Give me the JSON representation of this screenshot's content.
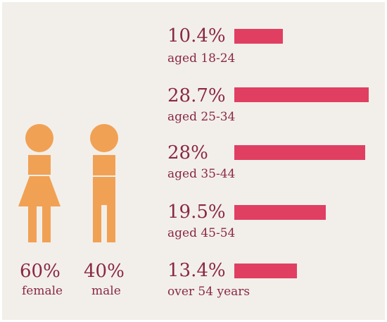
{
  "colors": {
    "background": "#f2efea",
    "figure": "#f1a154",
    "bar": "#e03f62",
    "text": "#8a2846"
  },
  "gender": [
    {
      "icon": "female-figure-icon",
      "percent": "60%",
      "label": "female"
    },
    {
      "icon": "male-figure-icon",
      "percent": "40%",
      "label": "male"
    }
  ],
  "chart_data": {
    "type": "bar",
    "orientation": "horizontal",
    "categories": [
      "aged 18-24",
      "aged 25-34",
      "aged 35-44",
      "aged 45-54",
      "over 54 years"
    ],
    "value_labels": [
      "10.4%",
      "28.7%",
      "28%",
      "19.5%",
      "13.4%"
    ],
    "values": [
      10.4,
      28.7,
      28,
      19.5,
      13.4
    ],
    "xlim": [
      0,
      28.7
    ],
    "bar_color": "#e03f62"
  }
}
